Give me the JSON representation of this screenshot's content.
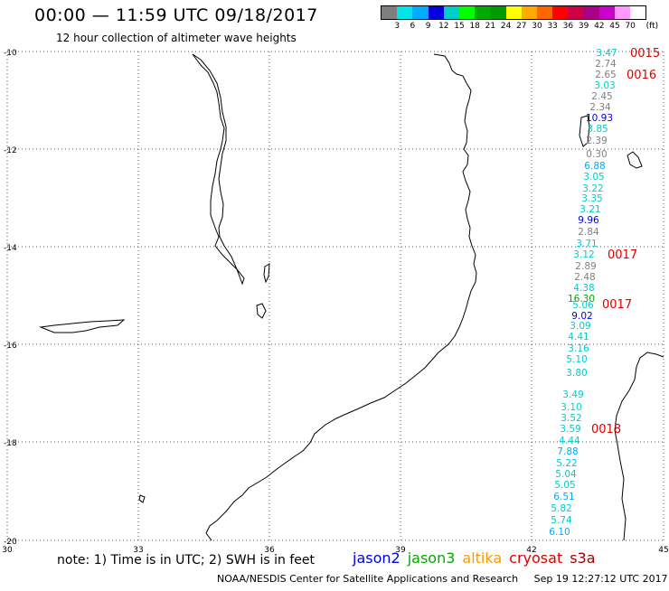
{
  "header": {
    "title": "00:00 — 11:59 UTC 09/18/2017",
    "subtitle": "12 hour collection of altimeter wave heights"
  },
  "colorbar": {
    "unit": "(ft)",
    "labels": [
      "3",
      "6",
      "9",
      "12",
      "15",
      "18",
      "21",
      "24",
      "27",
      "30",
      "33",
      "36",
      "39",
      "42",
      "45",
      "70"
    ],
    "colors": [
      "#7f7f7f",
      "#00e5e5",
      "#00aaff",
      "#0000dd",
      "#00cccc",
      "#00ff00",
      "#00aa00",
      "#009900",
      "#ffff00",
      "#ffaa00",
      "#ff6600",
      "#ff0000",
      "#cc0044",
      "#aa0088",
      "#cc00cc",
      "#ff99ff",
      "#ffffff"
    ]
  },
  "map": {
    "lat_labels": [
      "-10",
      "-12",
      "-14",
      "-16",
      "-18",
      "-20"
    ],
    "lon_labels": [
      "30",
      "33",
      "36",
      "39",
      "42",
      "45"
    ],
    "wave_heights": [
      {
        "v": "3.47",
        "c": "#00cccc"
      },
      {
        "v": "2.74",
        "c": "#7f7f7f"
      },
      {
        "v": "2.65",
        "c": "#7f7f7f"
      },
      {
        "v": "3.03",
        "c": "#00cccc"
      },
      {
        "v": "2.45",
        "c": "#7f7f7f"
      },
      {
        "v": "2.34",
        "c": "#7f7f7f"
      },
      {
        "v": "10.93",
        "c": "#0000dd"
      },
      {
        "v": "3.85",
        "c": "#00cccc"
      },
      {
        "v": "2.39",
        "c": "#7f7f7f"
      },
      {
        "v": "0.30",
        "c": "#7f7f7f"
      },
      {
        "v": "6.88",
        "c": "#00aaff"
      },
      {
        "v": "3.05",
        "c": "#00cccc"
      },
      {
        "v": "3.22",
        "c": "#00cccc"
      },
      {
        "v": "3.35",
        "c": "#00cccc"
      },
      {
        "v": "3.21",
        "c": "#00cccc"
      },
      {
        "v": "9.96",
        "c": "#0000dd"
      },
      {
        "v": "2.84",
        "c": "#7f7f7f"
      },
      {
        "v": "3.71",
        "c": "#00cccc"
      },
      {
        "v": "3.12",
        "c": "#00cccc"
      },
      {
        "v": "2.89",
        "c": "#7f7f7f"
      },
      {
        "v": "2.48",
        "c": "#7f7f7f"
      },
      {
        "v": "4.38",
        "c": "#00cccc"
      },
      {
        "v": "16.30",
        "c": "#00aa00"
      },
      {
        "v": "5.06",
        "c": "#00cccc"
      },
      {
        "v": "9.02",
        "c": "#0000dd"
      },
      {
        "v": "3.09",
        "c": "#00cccc"
      },
      {
        "v": "4.41",
        "c": "#00cccc"
      },
      {
        "v": "3.16",
        "c": "#00cccc"
      },
      {
        "v": "5.10",
        "c": "#00cccc"
      },
      {
        "v": "3.80",
        "c": "#00cccc"
      },
      {
        "v": "3.49",
        "c": "#00cccc"
      },
      {
        "v": "3.10",
        "c": "#00cccc"
      },
      {
        "v": "3.52",
        "c": "#00cccc"
      },
      {
        "v": "3.59",
        "c": "#00cccc"
      },
      {
        "v": "4.44",
        "c": "#00cccc"
      },
      {
        "v": "7.88",
        "c": "#00aaff"
      },
      {
        "v": "5.22",
        "c": "#00cccc"
      },
      {
        "v": "5.04",
        "c": "#00cccc"
      },
      {
        "v": "5.05",
        "c": "#00cccc"
      },
      {
        "v": "6.51",
        "c": "#00aaff"
      },
      {
        "v": "5.82",
        "c": "#00cccc"
      },
      {
        "v": "5.74",
        "c": "#00cccc"
      },
      {
        "v": "6.10",
        "c": "#00aaff"
      }
    ],
    "pass_times": [
      {
        "v": "0015",
        "c": "#dd0000"
      },
      {
        "v": "0016",
        "c": "#dd0000"
      },
      {
        "v": "0017",
        "c": "#dd0000"
      },
      {
        "v": "0017",
        "c": "#dd0000"
      },
      {
        "v": "0018",
        "c": "#dd0000"
      }
    ]
  },
  "footer": {
    "note": "note: 1) Time is in UTC; 2) SWH is in feet",
    "legend": [
      {
        "label": "jason2",
        "color": "#0000dd"
      },
      {
        "label": "jason3",
        "color": "#00aa00"
      },
      {
        "label": "altika",
        "color": "#ff9900"
      },
      {
        "label": "cryosat",
        "color": "#dd0000"
      },
      {
        "label": "s3a",
        "color": "#990000"
      }
    ],
    "credit": "NOAA/NESDIS Center for Satellite Applications and Research",
    "timestamp": "Sep 19 12:27:12 UTC 2017"
  }
}
